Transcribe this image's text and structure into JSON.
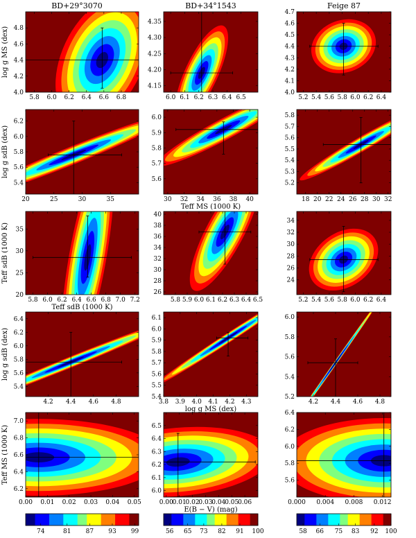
{
  "columns": [
    "BD+29°3070",
    "BD+34°1543",
    "Feige 87"
  ],
  "colors": {
    "background_fill": "#7f0000",
    "colormap": [
      "#00007f",
      "#0000ff",
      "#007fff",
      "#00ffff",
      "#7fff7f",
      "#ffff00",
      "#ff7f00",
      "#ff0000",
      "#7f0000"
    ],
    "crosshair": "#000000"
  },
  "chart_data": [
    {
      "type": "heatmap",
      "title": "BD+29°3070",
      "ylabel": "log g MS (dex)",
      "xlabel": "",
      "xlim": [
        5.7,
        7.0
      ],
      "ylim": [
        4.0,
        5.0
      ],
      "xticks": [
        "5.8",
        "6.0",
        "6.2",
        "6.4",
        "6.6",
        "6.8"
      ],
      "yticks": [
        "4.0",
        "4.2",
        "4.4",
        "4.6",
        "4.8"
      ],
      "best_fit": {
        "x": 6.58,
        "y": 4.4
      },
      "error_x": [
        5.7,
        7.0
      ],
      "error_y": [
        4.05,
        4.8
      ]
    },
    {
      "type": "heatmap",
      "title": "BD+34°1543",
      "ylabel": "",
      "xlabel": "",
      "xlim": [
        5.95,
        6.62
      ],
      "ylim": [
        4.13,
        4.38
      ],
      "xticks": [
        "6.0",
        "6.1",
        "6.2",
        "6.3",
        "6.4",
        "6.5"
      ],
      "yticks": [
        "4.15",
        "4.20",
        "4.25",
        "4.30",
        "4.35"
      ],
      "best_fit": {
        "x": 6.22,
        "y": 4.19
      },
      "error_x": [
        6.0,
        6.44
      ],
      "error_y": [
        4.13,
        4.38
      ]
    },
    {
      "type": "heatmap",
      "title": "Feige 87",
      "ylabel": "",
      "xlabel": "",
      "xlim": [
        5.1,
        6.55
      ],
      "ylim": [
        4.0,
        4.7
      ],
      "xticks": [
        "5.2",
        "5.4",
        "5.6",
        "5.8",
        "6.0",
        "6.2",
        "6.4"
      ],
      "yticks": [
        "4.0",
        "4.1",
        "4.2",
        "4.3",
        "4.4",
        "4.5",
        "4.6",
        "4.7"
      ],
      "best_fit": {
        "x": 5.82,
        "y": 4.4
      },
      "error_x": [
        5.3,
        6.35
      ],
      "error_y": [
        4.15,
        4.6
      ]
    },
    {
      "type": "heatmap",
      "ylabel": "log g sdB (dex)",
      "xlabel": "",
      "xlim": [
        20,
        40
      ],
      "ylim": [
        5.25,
        6.35
      ],
      "xticks": [
        "20",
        "25",
        "30",
        "35"
      ],
      "yticks": [
        "5.4",
        "5.6",
        "5.8",
        "6.0",
        "6.2"
      ],
      "best_fit": {
        "x": 28.5,
        "y": 5.76
      },
      "error_x": [
        24,
        37
      ],
      "error_y": [
        5.25,
        6.2
      ]
    },
    {
      "type": "heatmap",
      "ylabel": "",
      "xlabel": "Teff MS (1000 K)",
      "xlim": [
        29.5,
        41
      ],
      "ylim": [
        5.5,
        6.05
      ],
      "xticks": [
        "30",
        "32",
        "34",
        "36",
        "38",
        "40"
      ],
      "yticks": [
        "5.6",
        "5.7",
        "5.8",
        "5.9",
        "6.0"
      ],
      "best_fit": {
        "x": 36.8,
        "y": 5.92
      },
      "error_x": [
        31,
        41
      ],
      "error_y": [
        5.76,
        5.97
      ]
    },
    {
      "type": "heatmap",
      "ylabel": "",
      "xlabel": "",
      "xlim": [
        16.5,
        32.5
      ],
      "ylim": [
        5.1,
        5.85
      ],
      "xticks": [
        "18",
        "20",
        "22",
        "24",
        "26",
        "28",
        "30",
        "32"
      ],
      "yticks": [
        "5.2",
        "5.3",
        "5.4",
        "5.5",
        "5.6",
        "5.7",
        "5.8"
      ],
      "best_fit": {
        "x": 27.4,
        "y": 5.54
      },
      "error_x": [
        21,
        32.5
      ],
      "error_y": [
        5.2,
        5.78
      ]
    },
    {
      "type": "heatmap",
      "ylabel": "Teff sdB (1000 K)",
      "xlabel": "Teff sdB (1000 K)",
      "xlim": [
        5.7,
        7.25
      ],
      "ylim": [
        20,
        39
      ],
      "xticks": [
        "5.8",
        "6.0",
        "6.2",
        "6.4",
        "6.6",
        "6.8",
        "7.0",
        "7.2"
      ],
      "yticks": [
        "20",
        "25",
        "30",
        "35"
      ],
      "best_fit": {
        "x": 6.55,
        "y": 28.5
      },
      "error_x": [
        5.8,
        7.15
      ],
      "error_y": [
        24,
        38
      ]
    },
    {
      "type": "heatmap",
      "ylabel": "",
      "xlabel": "",
      "xlim": [
        5.7,
        6.5
      ],
      "ylim": [
        25.5,
        40.5
      ],
      "xticks": [
        "5.8",
        "5.9",
        "6.0",
        "6.1",
        "6.2",
        "6.3",
        "6.4",
        "6.5"
      ],
      "yticks": [
        "26",
        "28",
        "30",
        "32",
        "34",
        "36",
        "38",
        "40"
      ],
      "best_fit": {
        "x": 6.22,
        "y": 36.8
      },
      "error_x": [
        6.0,
        6.44
      ],
      "error_y": [
        31,
        40.5
      ]
    },
    {
      "type": "heatmap",
      "ylabel": "",
      "xlabel": "",
      "xlim": [
        5.1,
        6.55
      ],
      "ylim": [
        21.5,
        35.5
      ],
      "xticks": [
        "5.2",
        "5.4",
        "5.6",
        "5.8",
        "6.0",
        "6.2",
        "6.4"
      ],
      "yticks": [
        "24",
        "26",
        "28",
        "30",
        "32",
        "34"
      ],
      "best_fit": {
        "x": 5.82,
        "y": 27.4
      },
      "error_x": [
        5.3,
        6.35
      ],
      "error_y": [
        22,
        33
      ]
    },
    {
      "type": "heatmap",
      "ylabel": "log g sdB (dex)",
      "xlabel": "",
      "xlim": [
        4.0,
        5.0
      ],
      "ylim": [
        5.25,
        6.5
      ],
      "xticks": [
        "4.2",
        "4.4",
        "4.6",
        "4.8"
      ],
      "yticks": [
        "5.4",
        "5.6",
        "5.8",
        "6.0",
        "6.2",
        "6.4"
      ],
      "best_fit": {
        "x": 4.4,
        "y": 5.76
      },
      "error_x": [
        4.0,
        4.85
      ],
      "error_y": [
        5.25,
        6.2
      ]
    },
    {
      "type": "heatmap",
      "ylabel": "",
      "xlabel": "log g MS (dex)",
      "xlim": [
        3.8,
        4.37
      ],
      "ylim": [
        5.4,
        6.15
      ],
      "xticks": [
        "3.8",
        "3.9",
        "4.0",
        "4.1",
        "4.2",
        "4.3"
      ],
      "yticks": [
        "5.4",
        "5.5",
        "5.6",
        "5.7",
        "5.8",
        "5.9",
        "6.0",
        "6.1"
      ],
      "best_fit": {
        "x": 4.19,
        "y": 5.92
      },
      "error_x": [
        4.12,
        4.31
      ],
      "error_y": [
        5.76,
        5.97
      ]
    },
    {
      "type": "heatmap",
      "ylabel": "",
      "xlabel": "",
      "xlim": [
        4.05,
        4.9
      ],
      "ylim": [
        5.2,
        6.05
      ],
      "xticks": [
        "4.2",
        "4.4",
        "4.6",
        "4.8"
      ],
      "yticks": [
        "5.2",
        "5.4",
        "5.6",
        "5.8",
        "6.0"
      ],
      "best_fit": {
        "x": 4.4,
        "y": 5.54
      },
      "error_x": [
        4.15,
        4.6
      ],
      "error_y": [
        5.2,
        5.78
      ]
    },
    {
      "type": "heatmap",
      "ylabel": "Teff MS (1000 K)",
      "xlabel": "",
      "xlim": [
        0.0,
        0.052
      ],
      "ylim": [
        6.1,
        7.1
      ],
      "xticks": [
        "0.00",
        "0.01",
        "0.02",
        "0.03",
        "0.04",
        "0.05"
      ],
      "yticks": [
        "6.2",
        "6.4",
        "6.6",
        "6.8",
        "7.0"
      ],
      "best_fit": {
        "x": 0.006,
        "y": 6.57
      },
      "error_x": [
        0.0,
        0.052
      ],
      "error_y": [
        6.1,
        7.1
      ]
    },
    {
      "type": "heatmap",
      "ylabel": "",
      "xlabel": "E(B − V) (mag)",
      "xlim": [
        -0.002,
        0.07
      ],
      "ylim": [
        5.95,
        6.6
      ],
      "xticks": [
        "0.00",
        "0.01",
        "0.02",
        "0.03",
        "0.04",
        "0.05",
        "0.06"
      ],
      "yticks": [
        "6.0",
        "6.1",
        "6.2",
        "6.3",
        "6.4",
        "6.5"
      ],
      "best_fit": {
        "x": 0.009,
        "y": 6.22
      },
      "error_x": [
        -0.002,
        0.068
      ],
      "error_y": [
        5.95,
        6.44
      ]
    },
    {
      "type": "heatmap",
      "ylabel": "",
      "xlabel": "",
      "xlim": [
        0.0,
        0.0132
      ],
      "ylim": [
        5.4,
        6.4
      ],
      "xticks": [
        "0.000",
        "0.004",
        "0.008",
        "0.012"
      ],
      "yticks": [
        "5.6",
        "5.8",
        "6.0",
        "6.2",
        "6.4"
      ],
      "best_fit": {
        "x": 0.0122,
        "y": 5.83
      },
      "error_x": [
        0.0,
        0.0132
      ],
      "error_y": [
        5.4,
        6.4
      ]
    }
  ],
  "colorbars": [
    {
      "ticks": [
        "74",
        "81",
        "87",
        "93",
        "99"
      ],
      "range": [
        70,
        100
      ]
    },
    {
      "ticks": [
        "56",
        "65",
        "73",
        "82",
        "91",
        "100"
      ],
      "range": [
        53,
        100
      ]
    },
    {
      "ticks": [
        "58",
        "66",
        "75",
        "83",
        "92",
        "100"
      ],
      "range": [
        55,
        100
      ]
    }
  ]
}
